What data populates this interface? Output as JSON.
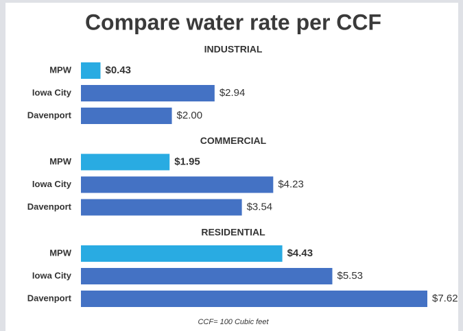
{
  "title": "Compare water rate per CCF",
  "note": "CCF= 100 Cubic feet",
  "chart_data": [
    {
      "type": "bar",
      "title": "INDUSTRIAL",
      "categories": [
        "MPW",
        "Iowa City",
        "Davenport"
      ],
      "values": [
        0.43,
        2.94,
        2.0
      ],
      "value_labels": [
        "$0.43",
        "$2.94",
        "$2.00"
      ],
      "colors": [
        "#29abe2",
        "#4472c4",
        "#4472c4"
      ]
    },
    {
      "type": "bar",
      "title": "COMMERCIAL",
      "categories": [
        "MPW",
        "Iowa City",
        "Davenport"
      ],
      "values": [
        1.95,
        4.23,
        3.54
      ],
      "value_labels": [
        "$1.95",
        "$4.23",
        "$3.54"
      ],
      "colors": [
        "#29abe2",
        "#4472c4",
        "#4472c4"
      ]
    },
    {
      "type": "bar",
      "title": "RESIDENTIAL",
      "categories": [
        "MPW",
        "Iowa City",
        "Davenport"
      ],
      "values": [
        4.43,
        5.53,
        7.62
      ],
      "value_labels": [
        "$4.43",
        "$5.53",
        "$7.62"
      ],
      "colors": [
        "#29abe2",
        "#4472c4",
        "#4472c4"
      ]
    }
  ]
}
